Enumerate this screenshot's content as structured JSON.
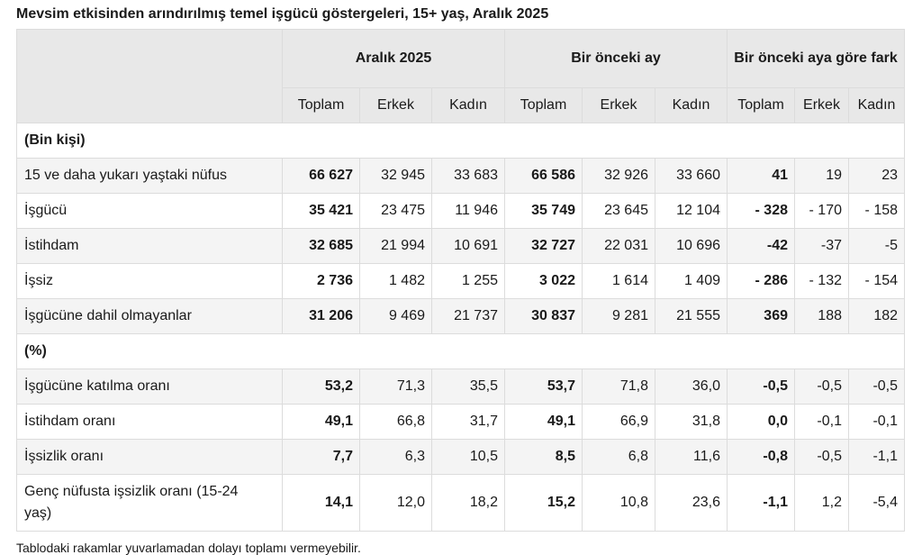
{
  "title": "Mevsim etkisinden arındırılmış temel işgücü göstergeleri, 15+ yaş, Aralık 2025",
  "table": {
    "groups": [
      "Aralık 2025",
      "Bir önceki ay",
      "Bir önceki aya göre fark"
    ],
    "subheaders": [
      "Toplam",
      "Erkek",
      "Kadın",
      "Toplam",
      "Erkek",
      "Kadın",
      "Toplam",
      "Erkek",
      "Kadın"
    ],
    "rows": [
      {
        "section": "(Bin kişi)"
      },
      {
        "label": "15 ve daha yukarı yaştaki nüfus",
        "cells": [
          "66 627",
          "32 945",
          "33 683",
          "66 586",
          "32 926",
          "33 660",
          "41",
          "19",
          "23"
        ]
      },
      {
        "label": "İşgücü",
        "cells": [
          "35 421",
          "23 475",
          "11 946",
          "35 749",
          "23 645",
          "12 104",
          "- 328",
          "- 170",
          "- 158"
        ]
      },
      {
        "label": "İstihdam",
        "cells": [
          "32 685",
          "21 994",
          "10 691",
          "32 727",
          "22 031",
          "10 696",
          "-42",
          "-37",
          "-5"
        ]
      },
      {
        "label": "İşsiz",
        "cells": [
          "2 736",
          "1 482",
          "1 255",
          "3 022",
          "1 614",
          "1 409",
          "- 286",
          "- 132",
          "- 154"
        ]
      },
      {
        "label": "İşgücüne dahil olmayanlar",
        "cells": [
          "31 206",
          "9 469",
          "21 737",
          "30 837",
          "9 281",
          "21 555",
          "369",
          "188",
          "182"
        ]
      },
      {
        "section": "(%)"
      },
      {
        "label": "İşgücüne katılma oranı",
        "cells": [
          "53,2",
          "71,3",
          "35,5",
          "53,7",
          "71,8",
          "36,0",
          "-0,5",
          "-0,5",
          "-0,5"
        ]
      },
      {
        "label": "İstihdam oranı",
        "cells": [
          "49,1",
          "66,8",
          "31,7",
          "49,1",
          "66,9",
          "31,8",
          "0,0",
          "-0,1",
          "-0,1"
        ]
      },
      {
        "label": "İşsizlik oranı",
        "cells": [
          "7,7",
          "6,3",
          "10,5",
          "8,5",
          "6,8",
          "11,6",
          "-0,8",
          "-0,5",
          "-1,1"
        ]
      },
      {
        "label": "Genç nüfusta işsizlik oranı (15-24 yaş)",
        "cells": [
          "14,1",
          "12,0",
          "18,2",
          "15,2",
          "10,8",
          "23,6",
          "-1,1",
          "1,2",
          "-5,4"
        ]
      }
    ]
  },
  "footnote": "Tablodaki rakamlar yuvarlamadan dolayı toplamı vermeyebilir."
}
